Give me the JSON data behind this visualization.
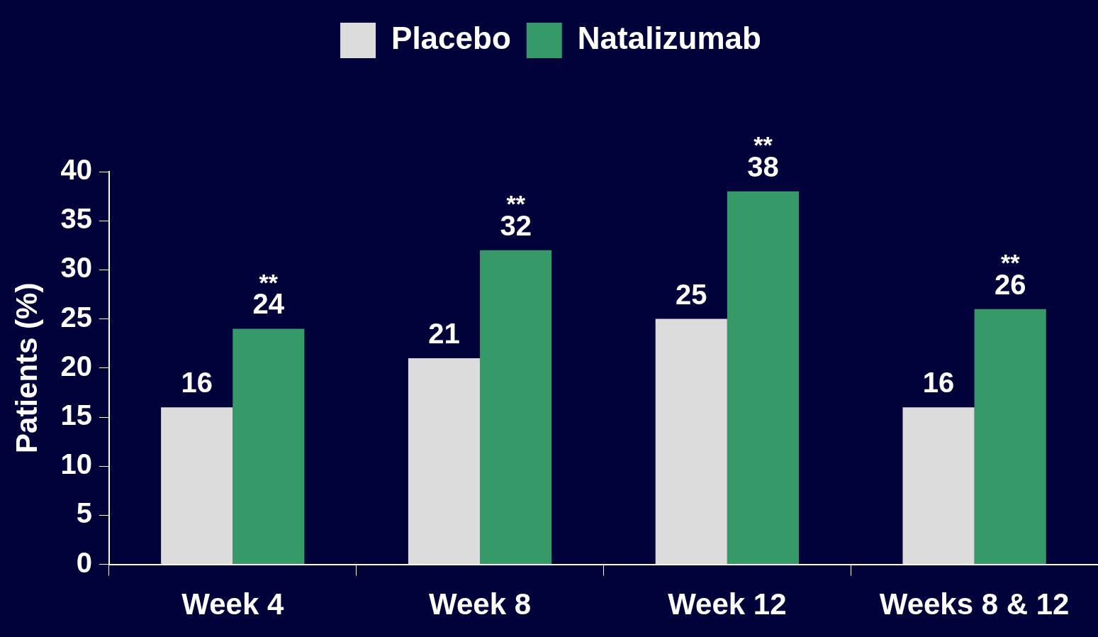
{
  "chart_data": {
    "type": "bar",
    "ylabel": "Patients (%)",
    "categories": [
      "Week 4",
      "Week 8",
      "Week 12",
      "Weeks 8 & 12"
    ],
    "series": [
      {
        "name": "Placebo",
        "color": "#dcdcdc",
        "values": [
          16,
          21,
          25,
          16
        ]
      },
      {
        "name": "Natalizumab",
        "color": "#359a68",
        "values": [
          24,
          32,
          38,
          26
        ]
      }
    ],
    "ylim": [
      0,
      40
    ],
    "yticks": [
      0,
      5,
      10,
      15,
      20,
      25,
      30,
      35,
      40
    ],
    "grid": false,
    "legend": "top",
    "data_labels": true,
    "annotations": [
      "**",
      "**",
      "**",
      "**"
    ]
  }
}
